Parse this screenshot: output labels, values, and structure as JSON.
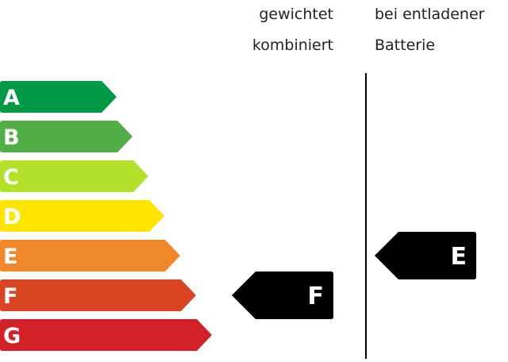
{
  "headers": {
    "combined": [
      "gewichtet",
      "kombiniert"
    ],
    "discharged": [
      "bei entladener",
      "Batterie"
    ]
  },
  "classes": [
    {
      "label": "A",
      "color": "#009a47"
    },
    {
      "label": "B",
      "color": "#52ae47"
    },
    {
      "label": "C",
      "color": "#b3e02b"
    },
    {
      "label": "D",
      "color": "#ffe400"
    },
    {
      "label": "E",
      "color": "#ee8829"
    },
    {
      "label": "F",
      "color": "#d94422"
    },
    {
      "label": "G",
      "color": "#d22129"
    }
  ],
  "ratings": {
    "combined": "F",
    "discharged": "E"
  },
  "indicator_color": "#000000"
}
